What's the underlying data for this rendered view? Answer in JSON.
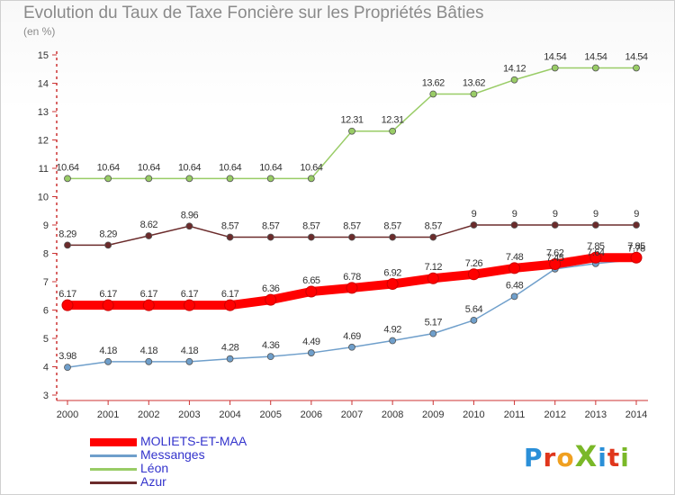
{
  "header": {
    "title": "Evolution du Taux de Taxe Foncière sur les Propriétés Bâties",
    "subtitle": "(en %)"
  },
  "logo": {
    "text": "ProXiti",
    "letters": [
      "P",
      "r",
      "o",
      "X",
      "i",
      "t",
      "i"
    ],
    "colors": [
      "#2a8fd8",
      "#e0361c",
      "#f0a020",
      "#7ab828",
      "#2a8fd8",
      "#e0361c",
      "#7ab828"
    ]
  },
  "chart_data": {
    "type": "line",
    "title": "Evolution du Taux de Taxe Foncière sur les Propriétés Bâties",
    "ylabel": "(en %)",
    "ylim": [
      3,
      15
    ],
    "yticks": [
      3,
      4,
      5,
      6,
      7,
      8,
      9,
      10,
      11,
      12,
      13,
      14,
      15
    ],
    "grid": false,
    "legend_position": "bottom-left",
    "x": [
      "2000",
      "2001",
      "2002",
      "2003",
      "2004",
      "2005",
      "2006",
      "2007",
      "2008",
      "2009",
      "2010",
      "2011",
      "2012",
      "2013",
      "2014"
    ],
    "series": [
      {
        "name": "MOLIETS-ET-MAA",
        "color": "#ff0000",
        "emphasis": true,
        "values": [
          6.17,
          6.17,
          6.17,
          6.17,
          6.17,
          6.36,
          6.65,
          6.78,
          6.92,
          7.12,
          7.26,
          7.48,
          7.62,
          7.85,
          7.85
        ],
        "labels": [
          "6.17",
          "6.17",
          "6.17",
          "6.17",
          "6.17",
          "6.36",
          "6.65",
          "6.78",
          "6.92",
          "7.12",
          "7.26",
          "7.48",
          "7.62",
          "7.85",
          "7.85"
        ]
      },
      {
        "name": "Messanges",
        "color": "#6f9fcb",
        "values": [
          3.98,
          4.18,
          4.18,
          4.18,
          4.28,
          4.36,
          4.49,
          4.69,
          4.92,
          5.17,
          5.64,
          6.48,
          7.45,
          7.64,
          7.78
        ],
        "labels": [
          "3.98",
          "4.18",
          "4.18",
          "4.18",
          "4.28",
          "4.36",
          "4.49",
          "4.69",
          "4.92",
          "5.17",
          "5.64",
          "6.48",
          "7.45",
          "7.64",
          "7.78"
        ]
      },
      {
        "name": "Léon",
        "color": "#99cc66",
        "values": [
          10.64,
          10.64,
          10.64,
          10.64,
          10.64,
          10.64,
          10.64,
          12.31,
          12.31,
          13.62,
          13.62,
          14.12,
          14.54,
          14.54,
          14.54
        ],
        "labels": [
          "10.64",
          "10.64",
          "10.64",
          "10.64",
          "10.64",
          "10.64",
          "10.64",
          "12.31",
          "12.31",
          "13.62",
          "13.62",
          "14.12",
          "14.54",
          "14.54",
          "14.54"
        ]
      },
      {
        "name": "Azur",
        "color": "#6b2b2b",
        "values": [
          8.29,
          8.29,
          8.62,
          8.96,
          8.57,
          8.57,
          8.57,
          8.57,
          8.57,
          8.57,
          9,
          9,
          9,
          9,
          9
        ],
        "labels": [
          "8.29",
          "8.29",
          "8.62",
          "8.96",
          "8.57",
          "8.57",
          "8.57",
          "8.57",
          "8.57",
          "8.57",
          "9",
          "9",
          "9",
          "9",
          "9"
        ]
      }
    ]
  }
}
